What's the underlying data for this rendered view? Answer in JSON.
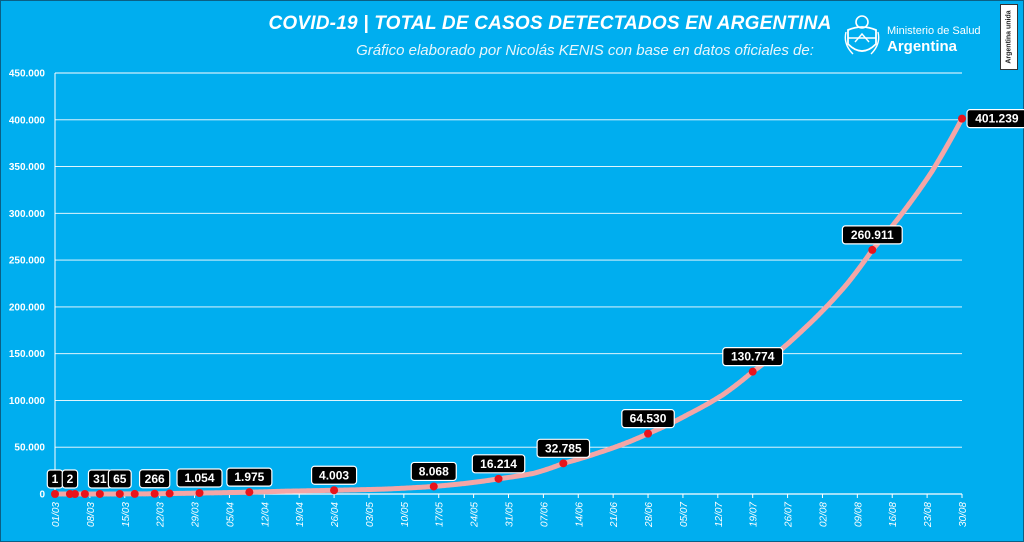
{
  "header": {
    "title": "COVID-19  |  TOTAL DE CASOS DETECTADOS EN ARGENTINA",
    "subtitle": "Gráfico elaborado por Nicolás KENIS con base en datos oficiales de:",
    "logo_line1": "Ministerio de Salud",
    "logo_line2": "Argentina",
    "badge": "Argentina unida"
  },
  "colors": {
    "background": "#00aeef",
    "line": "#f4a6a6",
    "marker": "#e8141c",
    "grid": "#ffffff",
    "label_bg": "#000000"
  },
  "chart_data": {
    "type": "line",
    "title": "COVID-19  |  TOTAL DE CASOS DETECTADOS EN ARGENTINA",
    "xlabel": "",
    "ylabel": "",
    "ylim": [
      0,
      450000
    ],
    "grid": true,
    "x_ticks": [
      "01/03",
      "08/03",
      "15/03",
      "22/03",
      "29/03",
      "05/04",
      "12/04",
      "19/04",
      "26/04",
      "03/05",
      "10/05",
      "17/05",
      "24/05",
      "31/05",
      "07/06",
      "14/06",
      "21/06",
      "28/06",
      "05/07",
      "12/07",
      "19/07",
      "26/07",
      "02/08",
      "09/08",
      "16/08",
      "23/08",
      "30/08"
    ],
    "y_ticks": [
      {
        "value": 0,
        "label": "0"
      },
      {
        "value": 50000,
        "label": "50.000"
      },
      {
        "value": 100000,
        "label": "100.000"
      },
      {
        "value": 150000,
        "label": "150.000"
      },
      {
        "value": 200000,
        "label": "200.000"
      },
      {
        "value": 250000,
        "label": "250.000"
      },
      {
        "value": 300000,
        "label": "300.000"
      },
      {
        "value": 350000,
        "label": "350.000"
      },
      {
        "value": 400000,
        "label": "400.000"
      },
      {
        "value": 450000,
        "label": "450.000"
      }
    ],
    "x_range_days": [
      0,
      182
    ],
    "series": [
      {
        "points": [
          {
            "day": 0,
            "value": 1
          },
          {
            "day": 3,
            "value": 2
          },
          {
            "day": 6,
            "value": 12
          },
          {
            "day": 9,
            "value": 31
          },
          {
            "day": 13,
            "value": 65
          },
          {
            "day": 16,
            "value": 97
          },
          {
            "day": 20,
            "value": 266
          },
          {
            "day": 23,
            "value": 502
          },
          {
            "day": 29,
            "value": 1054
          },
          {
            "day": 39,
            "value": 1975
          },
          {
            "day": 46,
            "value": 3000
          },
          {
            "day": 56,
            "value": 4003
          },
          {
            "day": 66,
            "value": 5200
          },
          {
            "day": 76,
            "value": 8068
          },
          {
            "day": 89,
            "value": 16214
          },
          {
            "day": 96,
            "value": 22000
          },
          {
            "day": 102,
            "value": 32785
          },
          {
            "day": 109,
            "value": 44000
          },
          {
            "day": 119,
            "value": 64530
          },
          {
            "day": 127,
            "value": 85000
          },
          {
            "day": 134,
            "value": 106000
          },
          {
            "day": 140,
            "value": 130774
          },
          {
            "day": 150,
            "value": 175000
          },
          {
            "day": 159,
            "value": 225000
          },
          {
            "day": 164,
            "value": 260911
          },
          {
            "day": 170,
            "value": 300000
          },
          {
            "day": 176,
            "value": 345000
          },
          {
            "day": 182,
            "value": 401239
          }
        ]
      }
    ],
    "markers": [
      {
        "day": 0,
        "value": 1
      },
      {
        "day": 3,
        "value": 2
      },
      {
        "day": 4,
        "value": 8
      },
      {
        "day": 6,
        "value": 12
      },
      {
        "day": 9,
        "value": 31
      },
      {
        "day": 13,
        "value": 65
      },
      {
        "day": 16,
        "value": 97
      },
      {
        "day": 20,
        "value": 266
      },
      {
        "day": 23,
        "value": 502
      },
      {
        "day": 29,
        "value": 1054
      },
      {
        "day": 39,
        "value": 1975
      },
      {
        "day": 56,
        "value": 4003
      },
      {
        "day": 76,
        "value": 8068
      },
      {
        "day": 89,
        "value": 16214
      },
      {
        "day": 102,
        "value": 32785
      },
      {
        "day": 119,
        "value": 64530
      },
      {
        "day": 140,
        "value": 130774
      },
      {
        "day": 164,
        "value": 260911
      },
      {
        "day": 182,
        "value": 401239
      }
    ],
    "annotations": [
      {
        "day": 0,
        "value": 1,
        "label": "1"
      },
      {
        "day": 3,
        "value": 2,
        "label": "2"
      },
      {
        "day": 9,
        "value": 31,
        "label": "31"
      },
      {
        "day": 13,
        "value": 65,
        "label": "65"
      },
      {
        "day": 20,
        "value": 266,
        "label": "266"
      },
      {
        "day": 29,
        "value": 1054,
        "label": "1.054"
      },
      {
        "day": 39,
        "value": 1975,
        "label": "1.975"
      },
      {
        "day": 56,
        "value": 4003,
        "label": "4.003"
      },
      {
        "day": 76,
        "value": 8068,
        "label": "8.068"
      },
      {
        "day": 89,
        "value": 16214,
        "label": "16.214"
      },
      {
        "day": 102,
        "value": 32785,
        "label": "32.785"
      },
      {
        "day": 119,
        "value": 64530,
        "label": "64.530"
      },
      {
        "day": 140,
        "value": 130774,
        "label": "130.774"
      },
      {
        "day": 164,
        "value": 260911,
        "label": "260.911"
      },
      {
        "day": 182,
        "value": 401239,
        "label": "401.239",
        "placement": "right"
      }
    ]
  }
}
